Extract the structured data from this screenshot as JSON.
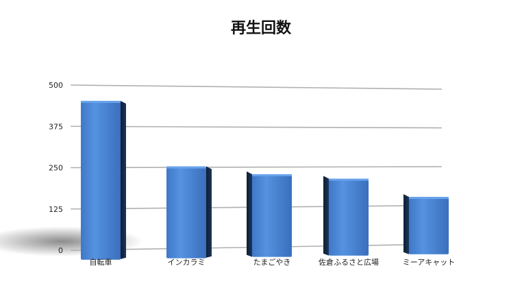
{
  "chart_data": {
    "type": "bar",
    "title": "再生回数",
    "xlabel": "",
    "ylabel": "",
    "categories": [
      "自転車",
      "インカラミ",
      "たまごやき",
      "佐倉ふるさと広場",
      "ミーアキャット"
    ],
    "values": [
      455,
      255,
      230,
      215,
      155
    ],
    "ylim": [
      0,
      500
    ],
    "yticks": [
      0,
      125,
      250,
      375,
      500
    ],
    "grid": true,
    "legend": "none",
    "bar_color": "#4a86d6"
  }
}
